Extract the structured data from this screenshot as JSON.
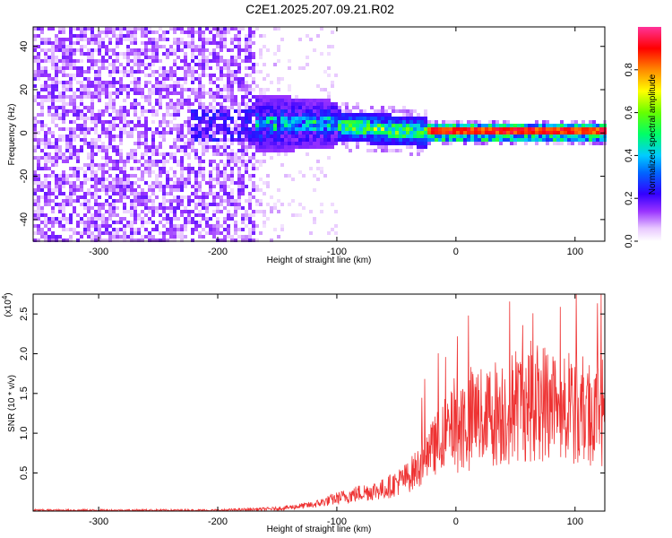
{
  "page": {
    "title": "C2E1.2025.207.09.21.R02"
  },
  "chart_data": [
    {
      "type": "heatmap",
      "xlabel": "Height of straight line (km)",
      "ylabel": "Frequency (Hz)",
      "xlim": [
        -355,
        125
      ],
      "ylim": [
        -50,
        49
      ],
      "xticks": [
        -300,
        -200,
        -100,
        0,
        100
      ],
      "yticks": [
        -40,
        -20,
        0,
        20,
        40
      ],
      "colorbar": {
        "label": "Normalized spectral amplitude",
        "ticks": [
          "0.0",
          "0.2",
          "0.4",
          "0.6",
          "0.8"
        ],
        "range": [
          0,
          1
        ],
        "colormap": "rainbow: white-violet-purple-blue-cyan-green-yellow-orange-red-magenta"
      },
      "description_regions": [
        {
          "x": [
            -355,
            -165
          ],
          "y": [
            -50,
            49
          ],
          "amplitude": 0.1
        },
        {
          "x": [
            -180,
            -25
          ],
          "y": [
            -10,
            15
          ],
          "amplitude": 0.35
        },
        {
          "x": [
            -25,
            125
          ],
          "y": [
            -3,
            5
          ],
          "amplitude": 0.9
        }
      ]
    },
    {
      "type": "line",
      "xlabel": "Height of straight line (km)",
      "ylabel": "SNR (10 * v/v)",
      "multiplier": "(x10",
      "multiplier_exp": "4",
      "xlim": [
        -355,
        125
      ],
      "ylim": [
        0.02,
        2.75
      ],
      "xticks": [
        -300,
        -200,
        -100,
        0,
        100
      ],
      "yticks": [
        "0.5",
        "1.0",
        "1.5",
        "2.0",
        "2.5"
      ],
      "ytick_values": [
        0.5,
        1.0,
        1.5,
        2.0,
        2.5
      ],
      "color": "#ee3333",
      "envelope": {
        "x": [
          -355,
          -200,
          -150,
          -120,
          -100,
          -80,
          -60,
          -40,
          -30,
          -20,
          -10,
          0,
          20,
          40,
          60,
          80,
          100,
          125
        ],
        "y": [
          0.03,
          0.03,
          0.05,
          0.1,
          0.18,
          0.25,
          0.3,
          0.45,
          0.6,
          0.8,
          1.0,
          1.1,
          1.2,
          1.3,
          1.4,
          1.4,
          1.3,
          1.25
        ]
      }
    }
  ],
  "colors": {
    "line": "#ee3333",
    "axis": "#000000",
    "background": "#ffffff"
  }
}
